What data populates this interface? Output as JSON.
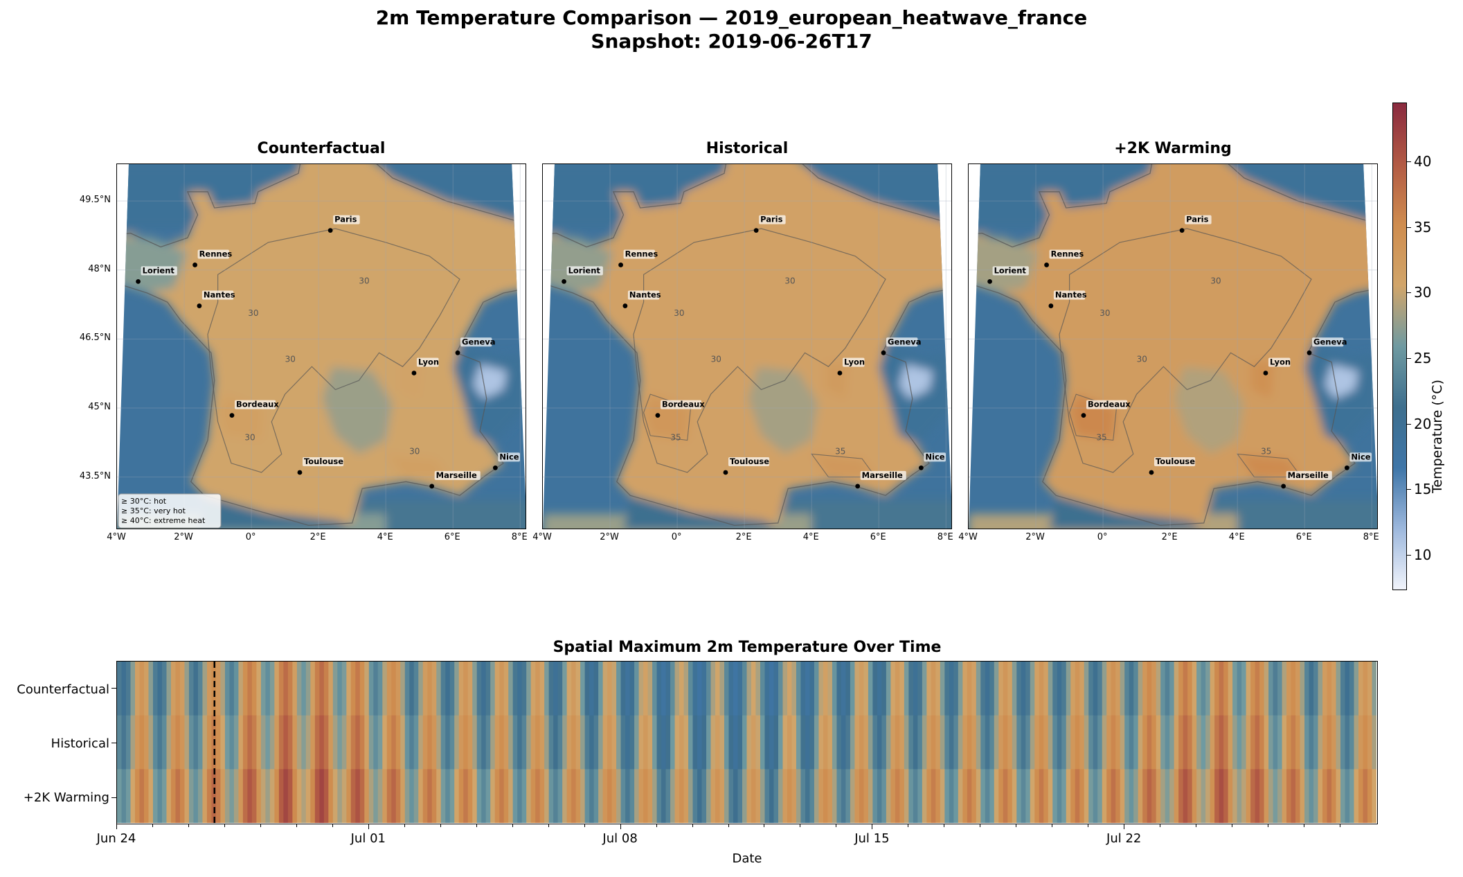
{
  "title": {
    "line1": "2m Temperature Comparison — 2019_european_heatwave_france",
    "line2": "Snapshot: 2019-06-26T17"
  },
  "maps": {
    "panels": [
      {
        "title": "Counterfactual",
        "offset": 0
      },
      {
        "title": "Historical",
        "offset": 1.5
      },
      {
        "title": "+2K Warming",
        "offset": 3.5
      }
    ],
    "lon_ticks": [
      "4°W",
      "2°W",
      "0°",
      "2°E",
      "4°E",
      "6°E",
      "8°E"
    ],
    "lat_ticks": [
      "49.5°N",
      "48°N",
      "46.5°N",
      "45°N",
      "43.5°N"
    ],
    "contour_labels": [
      "30",
      "35"
    ],
    "cities": [
      {
        "name": "Paris",
        "lon": 2.35,
        "lat": 48.86
      },
      {
        "name": "Rennes",
        "lon": -1.68,
        "lat": 48.11
      },
      {
        "name": "Lorient",
        "lon": -3.37,
        "lat": 47.75
      },
      {
        "name": "Nantes",
        "lon": -1.55,
        "lat": 47.22
      },
      {
        "name": "Geneva",
        "lon": 6.14,
        "lat": 46.2
      },
      {
        "name": "Lyon",
        "lon": 4.84,
        "lat": 45.76
      },
      {
        "name": "Bordeaux",
        "lon": -0.58,
        "lat": 44.84
      },
      {
        "name": "Toulouse",
        "lon": 1.44,
        "lat": 43.6
      },
      {
        "name": "Nice",
        "lon": 7.26,
        "lat": 43.7
      },
      {
        "name": "Marseille",
        "lon": 5.37,
        "lat": 43.3
      }
    ],
    "legend": [
      "≥ 30°C: hot",
      "≥ 35°C: very hot",
      "≥ 40°C: extreme heat"
    ]
  },
  "colorbar": {
    "label": "Temperature (°C)",
    "ticks": [
      "10",
      "15",
      "20",
      "25",
      "30",
      "35",
      "40"
    ],
    "vmin": 7.3,
    "vmax": 44.5,
    "colors": [
      "#f1f4fb",
      "#9db8dd",
      "#3f76a8",
      "#3e6f8e",
      "#6f9aa1",
      "#d1a56a",
      "#cf8d4f",
      "#b25a44",
      "#8a2a3f"
    ]
  },
  "timeseries": {
    "title": "Spatial Maximum 2m Temperature Over Time",
    "rows": [
      "Counterfactual",
      "Historical",
      "+2K Warming"
    ],
    "x_ticks": [
      "Jun 24",
      "Jul 01",
      "Jul 08",
      "Jul 15",
      "Jul 22"
    ],
    "xlabel": "Date",
    "start": "Jun 24",
    "days": 35,
    "snapshot": "2019-06-26T17"
  }
}
